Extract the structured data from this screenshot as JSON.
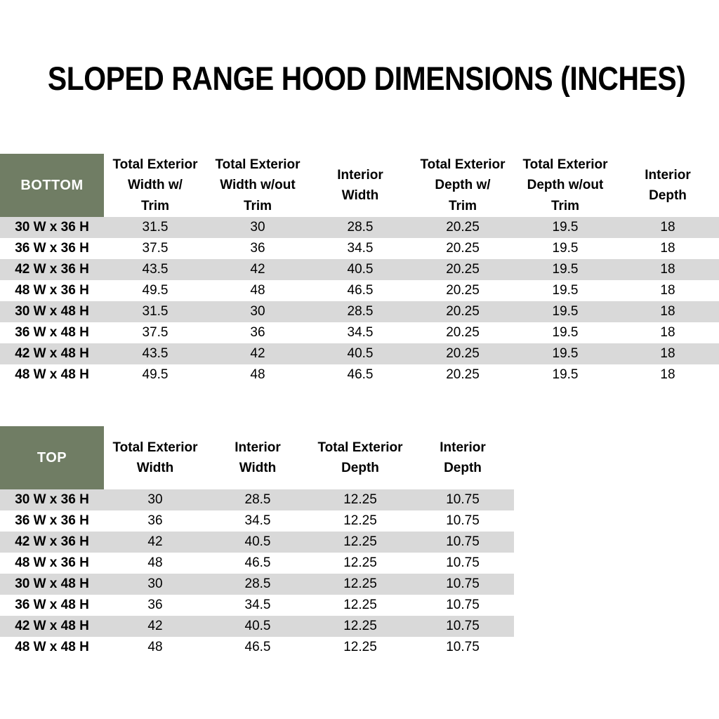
{
  "page": {
    "title": "SLOPED RANGE HOOD DIMENSIONS (INCHES)"
  },
  "colors": {
    "header_fill": "#707D64",
    "header_text": "#FFFFFF",
    "row_stripe_fill": "#D9D9D9",
    "row_plain_fill": "#FFFFFF",
    "text": "#000000"
  },
  "tables": [
    {
      "id": "bottom",
      "corner_label": "BOTTOM",
      "columns": [
        "Total Exterior\nWidth w/\nTrim",
        "Total Exterior\nWidth w/out\nTrim",
        "Interior\nWidth",
        "Total Exterior\nDepth w/\nTrim",
        "Total Exterior\nDepth w/out\nTrim",
        "Interior\nDepth"
      ],
      "rows": [
        {
          "label": "30 W x 36 H",
          "values": [
            "31.5",
            "30",
            "28.5",
            "20.25",
            "19.5",
            "18"
          ]
        },
        {
          "label": "36 W x 36 H",
          "values": [
            "37.5",
            "36",
            "34.5",
            "20.25",
            "19.5",
            "18"
          ]
        },
        {
          "label": "42 W x 36 H",
          "values": [
            "43.5",
            "42",
            "40.5",
            "20.25",
            "19.5",
            "18"
          ]
        },
        {
          "label": "48 W x 36 H",
          "values": [
            "49.5",
            "48",
            "46.5",
            "20.25",
            "19.5",
            "18"
          ]
        },
        {
          "label": "30 W x 48 H",
          "values": [
            "31.5",
            "30",
            "28.5",
            "20.25",
            "19.5",
            "18"
          ]
        },
        {
          "label": "36 W x 48 H",
          "values": [
            "37.5",
            "36",
            "34.5",
            "20.25",
            "19.5",
            "18"
          ]
        },
        {
          "label": "42 W x 48 H",
          "values": [
            "43.5",
            "42",
            "40.5",
            "20.25",
            "19.5",
            "18"
          ]
        },
        {
          "label": "48 W x 48 H",
          "values": [
            "49.5",
            "48",
            "46.5",
            "20.25",
            "19.5",
            "18"
          ]
        }
      ]
    },
    {
      "id": "top",
      "corner_label": "TOP",
      "columns": [
        "Total Exterior\nWidth",
        "Interior\nWidth",
        "Total Exterior\nDepth",
        "Interior\nDepth"
      ],
      "rows": [
        {
          "label": "30 W x 36 H",
          "values": [
            "30",
            "28.5",
            "12.25",
            "10.75"
          ]
        },
        {
          "label": "36 W x 36 H",
          "values": [
            "36",
            "34.5",
            "12.25",
            "10.75"
          ]
        },
        {
          "label": "42 W x 36 H",
          "values": [
            "42",
            "40.5",
            "12.25",
            "10.75"
          ]
        },
        {
          "label": "48 W x 36 H",
          "values": [
            "48",
            "46.5",
            "12.25",
            "10.75"
          ]
        },
        {
          "label": "30 W x 48 H",
          "values": [
            "30",
            "28.5",
            "12.25",
            "10.75"
          ]
        },
        {
          "label": "36 W x 48 H",
          "values": [
            "36",
            "34.5",
            "12.25",
            "10.75"
          ]
        },
        {
          "label": "42 W x 48 H",
          "values": [
            "42",
            "40.5",
            "12.25",
            "10.75"
          ]
        },
        {
          "label": "48 W x 48 H",
          "values": [
            "48",
            "46.5",
            "12.25",
            "10.75"
          ]
        }
      ]
    }
  ]
}
